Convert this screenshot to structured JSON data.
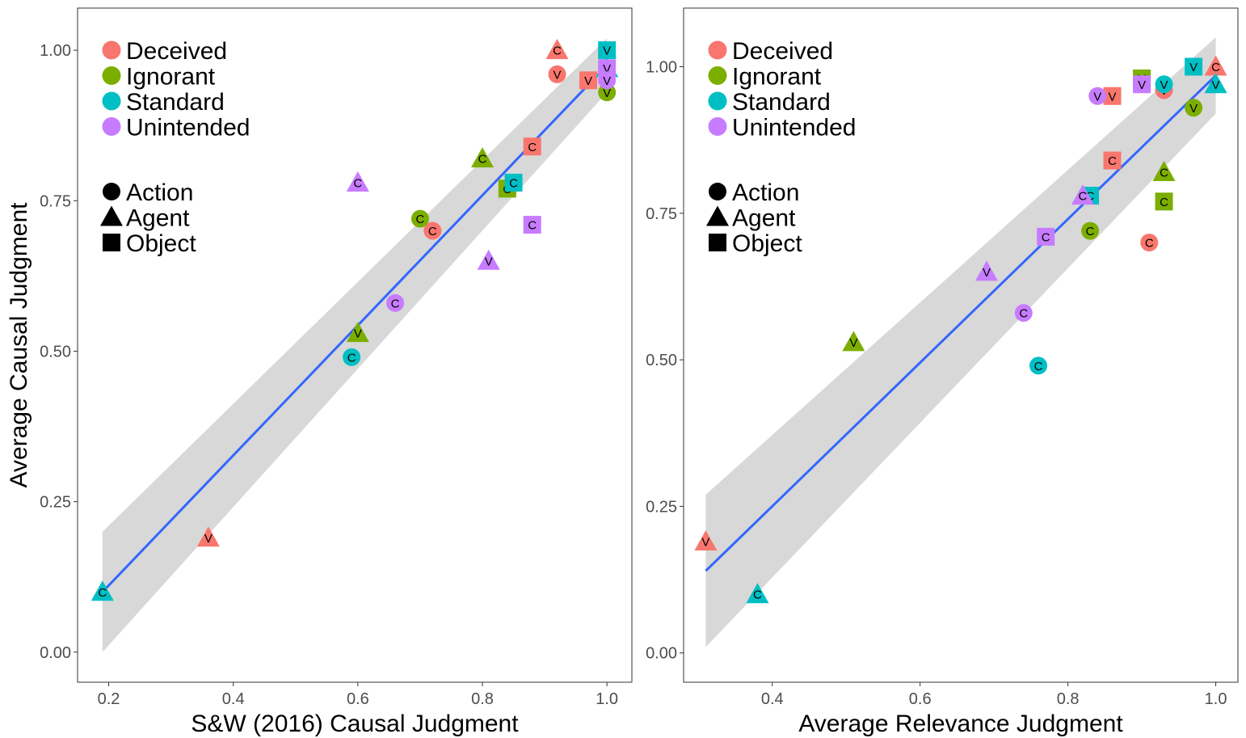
{
  "colors": {
    "Deceived": "#F8766D",
    "Ignorant": "#7CAE00",
    "Standard": "#00BFC4",
    "Unintended": "#C77CFF",
    "fit_line": "#3366FF",
    "ribbon": "#BEBEBE"
  },
  "shape_icons": {
    "Action": "circle-icon",
    "Agent": "triangle-icon",
    "Object": "square-icon"
  },
  "legend": {
    "conditions": [
      "Deceived",
      "Ignorant",
      "Standard",
      "Unintended"
    ],
    "shapes": [
      "Action",
      "Agent",
      "Object"
    ]
  },
  "ylabel_shared": "Average Causal Judgment",
  "chart_data": [
    {
      "type": "scatter",
      "xlabel": "S&W (2016) Causal Judgment",
      "ylabel": "Average Causal Judgment",
      "xlim": [
        0.15,
        1.04
      ],
      "ylim": [
        -0.05,
        1.07
      ],
      "xticks": [
        "0.2",
        "0.4",
        "0.6",
        "0.8",
        "1.0"
      ],
      "yticks": [
        "0.00",
        "0.25",
        "0.50",
        "0.75",
        "1.00"
      ],
      "fit": {
        "x": [
          0.19,
          1.0
        ],
        "y": [
          0.1,
          0.975
        ],
        "band_lo": [
          0.0,
          0.93
        ],
        "band_hi": [
          0.2,
          1.02
        ]
      },
      "points": [
        {
          "x": 0.92,
          "y": 1.0,
          "condition": "Deceived",
          "shape": "Agent",
          "label": "C"
        },
        {
          "x": 0.92,
          "y": 0.96,
          "condition": "Deceived",
          "shape": "Action",
          "label": "V"
        },
        {
          "x": 0.97,
          "y": 0.95,
          "condition": "Deceived",
          "shape": "Object",
          "label": "V"
        },
        {
          "x": 0.88,
          "y": 0.84,
          "condition": "Deceived",
          "shape": "Object",
          "label": "C"
        },
        {
          "x": 0.72,
          "y": 0.7,
          "condition": "Deceived",
          "shape": "Action",
          "label": "C"
        },
        {
          "x": 0.36,
          "y": 0.19,
          "condition": "Deceived",
          "shape": "Agent",
          "label": "V"
        },
        {
          "x": 1.0,
          "y": 0.93,
          "condition": "Ignorant",
          "shape": "Action",
          "label": "V"
        },
        {
          "x": 0.8,
          "y": 0.82,
          "condition": "Ignorant",
          "shape": "Agent",
          "label": "C"
        },
        {
          "x": 0.84,
          "y": 0.77,
          "condition": "Ignorant",
          "shape": "Object",
          "label": "C"
        },
        {
          "x": 0.7,
          "y": 0.72,
          "condition": "Ignorant",
          "shape": "Action",
          "label": "C"
        },
        {
          "x": 0.6,
          "y": 0.53,
          "condition": "Ignorant",
          "shape": "Agent",
          "label": "V"
        },
        {
          "x": 1.0,
          "y": 1.0,
          "condition": "Standard",
          "shape": "Object",
          "label": "V"
        },
        {
          "x": 1.0,
          "y": 0.97,
          "condition": "Standard",
          "shape": "Agent",
          "label": "V"
        },
        {
          "x": 0.85,
          "y": 0.78,
          "condition": "Standard",
          "shape": "Object",
          "label": "C"
        },
        {
          "x": 0.59,
          "y": 0.49,
          "condition": "Standard",
          "shape": "Action",
          "label": "C"
        },
        {
          "x": 0.19,
          "y": 0.1,
          "condition": "Standard",
          "shape": "Agent",
          "label": "C"
        },
        {
          "x": 1.0,
          "y": 0.97,
          "condition": "Unintended",
          "shape": "Object",
          "label": "V"
        },
        {
          "x": 1.0,
          "y": 0.95,
          "condition": "Unintended",
          "shape": "Action",
          "label": "V"
        },
        {
          "x": 0.6,
          "y": 0.78,
          "condition": "Unintended",
          "shape": "Agent",
          "label": "C"
        },
        {
          "x": 0.88,
          "y": 0.71,
          "condition": "Unintended",
          "shape": "Object",
          "label": "C"
        },
        {
          "x": 0.81,
          "y": 0.65,
          "condition": "Unintended",
          "shape": "Agent",
          "label": "V"
        },
        {
          "x": 0.66,
          "y": 0.58,
          "condition": "Unintended",
          "shape": "Action",
          "label": "C"
        }
      ]
    },
    {
      "type": "scatter",
      "xlabel": "Average Relevance Judgment",
      "ylabel": "",
      "xlim": [
        0.28,
        1.03
      ],
      "ylim": [
        -0.05,
        1.1
      ],
      "xticks": [
        "0.4",
        "0.6",
        "0.8",
        "1.0"
      ],
      "yticks": [
        "0.00",
        "0.25",
        "0.50",
        "0.75",
        "1.00"
      ],
      "fit": {
        "x": [
          0.31,
          1.0
        ],
        "y": [
          0.14,
          0.985
        ],
        "band_lo": [
          0.01,
          0.92
        ],
        "band_hi": [
          0.27,
          1.05
        ]
      },
      "points": [
        {
          "x": 1.0,
          "y": 1.0,
          "condition": "Deceived",
          "shape": "Agent",
          "label": "C"
        },
        {
          "x": 0.93,
          "y": 0.96,
          "condition": "Deceived",
          "shape": "Action",
          "label": "V"
        },
        {
          "x": 0.86,
          "y": 0.95,
          "condition": "Deceived",
          "shape": "Object",
          "label": "V"
        },
        {
          "x": 0.86,
          "y": 0.84,
          "condition": "Deceived",
          "shape": "Object",
          "label": "C"
        },
        {
          "x": 0.91,
          "y": 0.7,
          "condition": "Deceived",
          "shape": "Action",
          "label": "C"
        },
        {
          "x": 0.31,
          "y": 0.19,
          "condition": "Deceived",
          "shape": "Agent",
          "label": "V"
        },
        {
          "x": 0.9,
          "y": 0.98,
          "condition": "Ignorant",
          "shape": "Object",
          "label": "V"
        },
        {
          "x": 0.97,
          "y": 0.93,
          "condition": "Ignorant",
          "shape": "Action",
          "label": "V"
        },
        {
          "x": 0.93,
          "y": 0.82,
          "condition": "Ignorant",
          "shape": "Agent",
          "label": "C"
        },
        {
          "x": 0.93,
          "y": 0.77,
          "condition": "Ignorant",
          "shape": "Object",
          "label": "C"
        },
        {
          "x": 0.83,
          "y": 0.72,
          "condition": "Ignorant",
          "shape": "Action",
          "label": "C"
        },
        {
          "x": 0.51,
          "y": 0.53,
          "condition": "Ignorant",
          "shape": "Agent",
          "label": "V"
        },
        {
          "x": 0.97,
          "y": 1.0,
          "condition": "Standard",
          "shape": "Object",
          "label": "V"
        },
        {
          "x": 1.0,
          "y": 0.97,
          "condition": "Standard",
          "shape": "Agent",
          "label": "V"
        },
        {
          "x": 0.93,
          "y": 0.97,
          "condition": "Standard",
          "shape": "Action",
          "label": "V"
        },
        {
          "x": 0.83,
          "y": 0.78,
          "condition": "Standard",
          "shape": "Object",
          "label": "C"
        },
        {
          "x": 0.76,
          "y": 0.49,
          "condition": "Standard",
          "shape": "Action",
          "label": "C"
        },
        {
          "x": 0.38,
          "y": 0.1,
          "condition": "Standard",
          "shape": "Agent",
          "label": "C"
        },
        {
          "x": 0.9,
          "y": 0.97,
          "condition": "Unintended",
          "shape": "Object",
          "label": "V"
        },
        {
          "x": 0.84,
          "y": 0.95,
          "condition": "Unintended",
          "shape": "Action",
          "label": "V"
        },
        {
          "x": 0.82,
          "y": 0.78,
          "condition": "Unintended",
          "shape": "Agent",
          "label": "C"
        },
        {
          "x": 0.77,
          "y": 0.71,
          "condition": "Unintended",
          "shape": "Object",
          "label": "C"
        },
        {
          "x": 0.69,
          "y": 0.65,
          "condition": "Unintended",
          "shape": "Agent",
          "label": "V"
        },
        {
          "x": 0.74,
          "y": 0.58,
          "condition": "Unintended",
          "shape": "Action",
          "label": "C"
        }
      ]
    }
  ]
}
